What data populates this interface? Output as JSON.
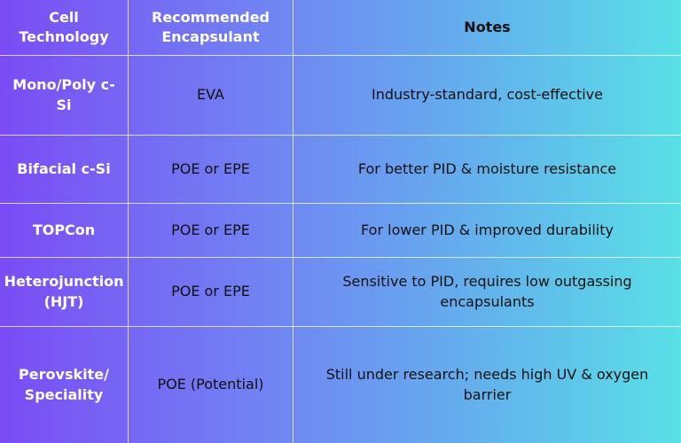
{
  "table": {
    "headers": [
      "Cell\nTechnology",
      "Recommended\nEncapsulant",
      "Notes"
    ],
    "rows": [
      [
        "Mono/Poly c-Si",
        "EVA",
        "Industry-standard, cost-effective"
      ],
      [
        "Bifacial c-Si",
        "POE or EPE",
        "For better PID & moisture resistance"
      ],
      [
        "TOPCon",
        "POE or EPE",
        "For lower PID & improved durability"
      ],
      [
        "Heterojunction\n(HJT)",
        "POE or EPE",
        "Sensitive to PID, requires low outgassing\nencapsulants"
      ],
      [
        "Perovskite/\nSpeciality",
        "POE (Potential)",
        "Still under research; needs high UV & oxygen\nbarrier"
      ]
    ]
  },
  "colors": {
    "gradient_start": "#7b4cf5",
    "gradient_end": "#5ae0e6",
    "header_text": "#ffffff",
    "body_text": "#111111"
  }
}
